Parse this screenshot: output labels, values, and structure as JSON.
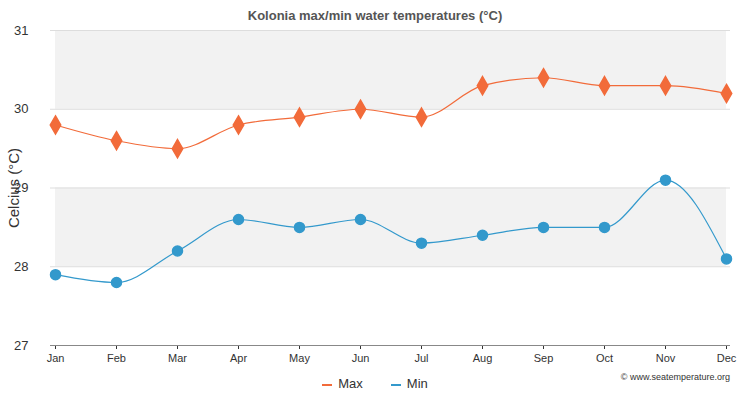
{
  "chart_data": {
    "type": "line",
    "title": "Kolonia max/min water temperatures (°C)",
    "y_label": "Celcius (°C)",
    "source": "© www.seatemperature.org",
    "categories": [
      "Jan",
      "Feb",
      "Mar",
      "Apr",
      "May",
      "Jun",
      "Jul",
      "Aug",
      "Sep",
      "Oct",
      "Nov",
      "Dec"
    ],
    "series": [
      {
        "name": "Max",
        "color": "#f26b3a",
        "marker": "diamond",
        "values": [
          29.8,
          29.6,
          29.5,
          29.8,
          29.9,
          30.0,
          29.9,
          30.3,
          30.4,
          30.3,
          30.3,
          30.2
        ]
      },
      {
        "name": "Min",
        "color": "#3399cc",
        "marker": "circle",
        "values": [
          27.9,
          27.8,
          28.2,
          28.6,
          28.5,
          28.6,
          28.3,
          28.4,
          28.5,
          28.5,
          29.1,
          28.1
        ]
      }
    ],
    "ylim": [
      27,
      31
    ],
    "yticks": [
      27,
      28,
      29,
      30,
      31
    ],
    "grid": true,
    "legend": "bottom"
  }
}
